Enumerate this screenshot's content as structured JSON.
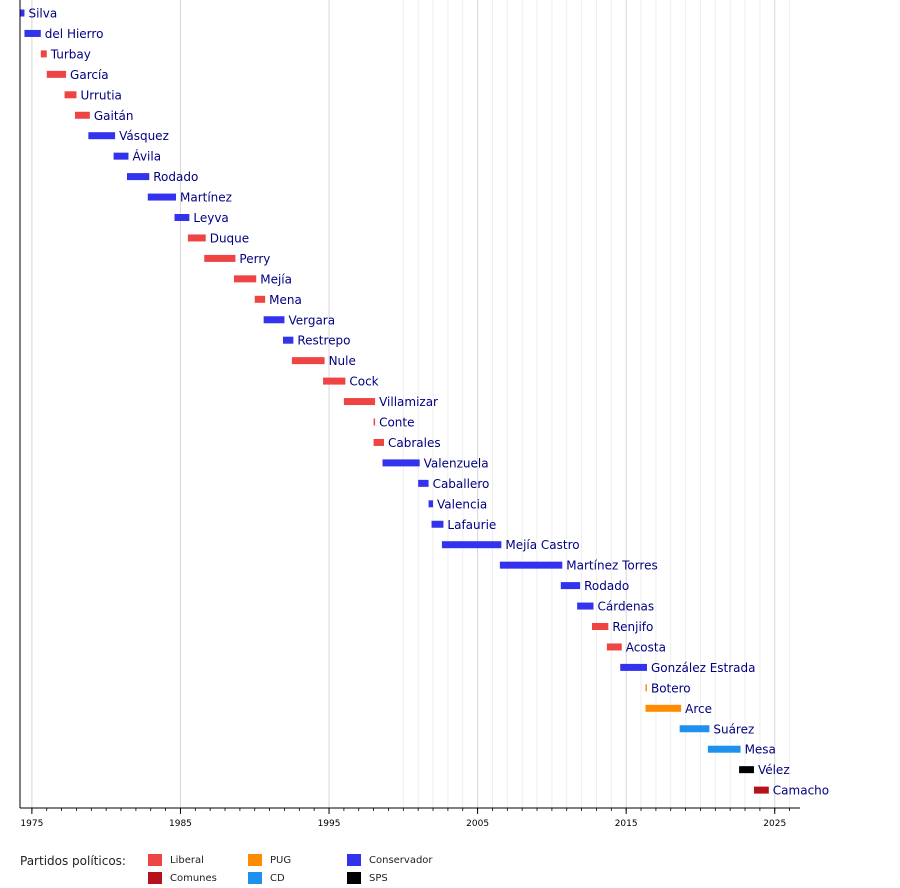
{
  "chart_data": {
    "type": "bar",
    "orientation": "horizontal-timeline",
    "x_ticks": [
      1975,
      1985,
      1995,
      2005,
      2015,
      2025
    ],
    "xlim": [
      1974.2,
      2026.7
    ],
    "legend": {
      "title": "Partidos políticos:",
      "placement": "bottom",
      "items": [
        {
          "party": "Liberal",
          "color": "#ee4444"
        },
        {
          "party": "Comunes",
          "color": "#b5121b"
        },
        {
          "party": "PUG",
          "color": "#ff8c00"
        },
        {
          "party": "CD",
          "color": "#1e90ee"
        },
        {
          "party": "Conservador",
          "color": "#3333ee"
        },
        {
          "party": "SPS",
          "color": "#000000"
        }
      ]
    },
    "colors": {
      "Liberal": "#ee4444",
      "Comunes": "#b5121b",
      "PUG": "#ff8c00",
      "CD": "#1e90ee",
      "Conservador": "#3333ee",
      "SPS": "#000000"
    },
    "bars": [
      {
        "name": "Silva",
        "party": "Conservador",
        "start": 1974.2,
        "end": 1974.5
      },
      {
        "name": "del Hierro",
        "party": "Conservador",
        "start": 1974.5,
        "end": 1975.6
      },
      {
        "name": "Turbay",
        "party": "Liberal",
        "start": 1975.6,
        "end": 1976.0
      },
      {
        "name": "García",
        "party": "Liberal",
        "start": 1976.0,
        "end": 1977.3
      },
      {
        "name": "Urrutia",
        "party": "Liberal",
        "start": 1977.2,
        "end": 1978.0
      },
      {
        "name": "Gaitán",
        "party": "Liberal",
        "start": 1977.9,
        "end": 1978.9
      },
      {
        "name": "Vásquez",
        "party": "Conservador",
        "start": 1978.8,
        "end": 1980.6
      },
      {
        "name": "Ávila",
        "party": "Conservador",
        "start": 1980.5,
        "end": 1981.5
      },
      {
        "name": "Rodado",
        "party": "Conservador",
        "start": 1981.4,
        "end": 1982.9
      },
      {
        "name": "Martínez",
        "party": "Conservador",
        "start": 1982.8,
        "end": 1984.7
      },
      {
        "name": "Leyva",
        "party": "Conservador",
        "start": 1984.6,
        "end": 1985.6
      },
      {
        "name": "Duque",
        "party": "Liberal",
        "start": 1985.5,
        "end": 1986.7
      },
      {
        "name": "Perry",
        "party": "Liberal",
        "start": 1986.6,
        "end": 1988.7
      },
      {
        "name": "Mejía",
        "party": "Liberal",
        "start": 1988.6,
        "end": 1990.1
      },
      {
        "name": "Mena",
        "party": "Liberal",
        "start": 1990.0,
        "end": 1990.7
      },
      {
        "name": "Vergara",
        "party": "Conservador",
        "start": 1990.6,
        "end": 1992.0
      },
      {
        "name": "Restrepo",
        "party": "Conservador",
        "start": 1991.9,
        "end": 1992.6
      },
      {
        "name": "Nule",
        "party": "Liberal",
        "start": 1992.5,
        "end": 1994.7
      },
      {
        "name": "Cock",
        "party": "Liberal",
        "start": 1994.6,
        "end": 1996.1
      },
      {
        "name": "Villamizar",
        "party": "Liberal",
        "start": 1996.0,
        "end": 1998.1
      },
      {
        "name": "Conte",
        "party": "Liberal",
        "start": 1998.0,
        "end": 1998.1
      },
      {
        "name": "Cabrales",
        "party": "Liberal",
        "start": 1998.0,
        "end": 1998.7
      },
      {
        "name": "Valenzuela",
        "party": "Conservador",
        "start": 1998.6,
        "end": 2001.1
      },
      {
        "name": "Caballero",
        "party": "Conservador",
        "start": 2001.0,
        "end": 2001.7
      },
      {
        "name": "Valencia",
        "party": "Conservador",
        "start": 2001.7,
        "end": 2002.0
      },
      {
        "name": "Lafaurie",
        "party": "Conservador",
        "start": 2001.9,
        "end": 2002.7
      },
      {
        "name": "Mejía Castro",
        "party": "Conservador",
        "start": 2002.6,
        "end": 2006.6
      },
      {
        "name": "Martínez Torres",
        "party": "Conservador",
        "start": 2006.5,
        "end": 2010.7
      },
      {
        "name": "Rodado",
        "party": "Conservador",
        "start": 2010.6,
        "end": 2011.9
      },
      {
        "name": "Cárdenas",
        "party": "Conservador",
        "start": 2011.7,
        "end": 2012.8
      },
      {
        "name": "Renjifo",
        "party": "Liberal",
        "start": 2012.7,
        "end": 2013.8
      },
      {
        "name": "Acosta",
        "party": "Liberal",
        "start": 2013.7,
        "end": 2014.7
      },
      {
        "name": "González Estrada",
        "party": "Conservador",
        "start": 2014.6,
        "end": 2016.4
      },
      {
        "name": "Botero",
        "party": "PUG",
        "start": 2016.3,
        "end": 2016.4
      },
      {
        "name": "Arce",
        "party": "PUG",
        "start": 2016.3,
        "end": 2018.7
      },
      {
        "name": "Suárez",
        "party": "CD",
        "start": 2018.6,
        "end": 2020.6
      },
      {
        "name": "Mesa",
        "party": "CD",
        "start": 2020.5,
        "end": 2022.7
      },
      {
        "name": "Vélez",
        "party": "SPS",
        "start": 2022.6,
        "end": 2023.6
      },
      {
        "name": "Camacho",
        "party": "Comunes",
        "start": 2023.6,
        "end": 2024.6
      }
    ]
  }
}
